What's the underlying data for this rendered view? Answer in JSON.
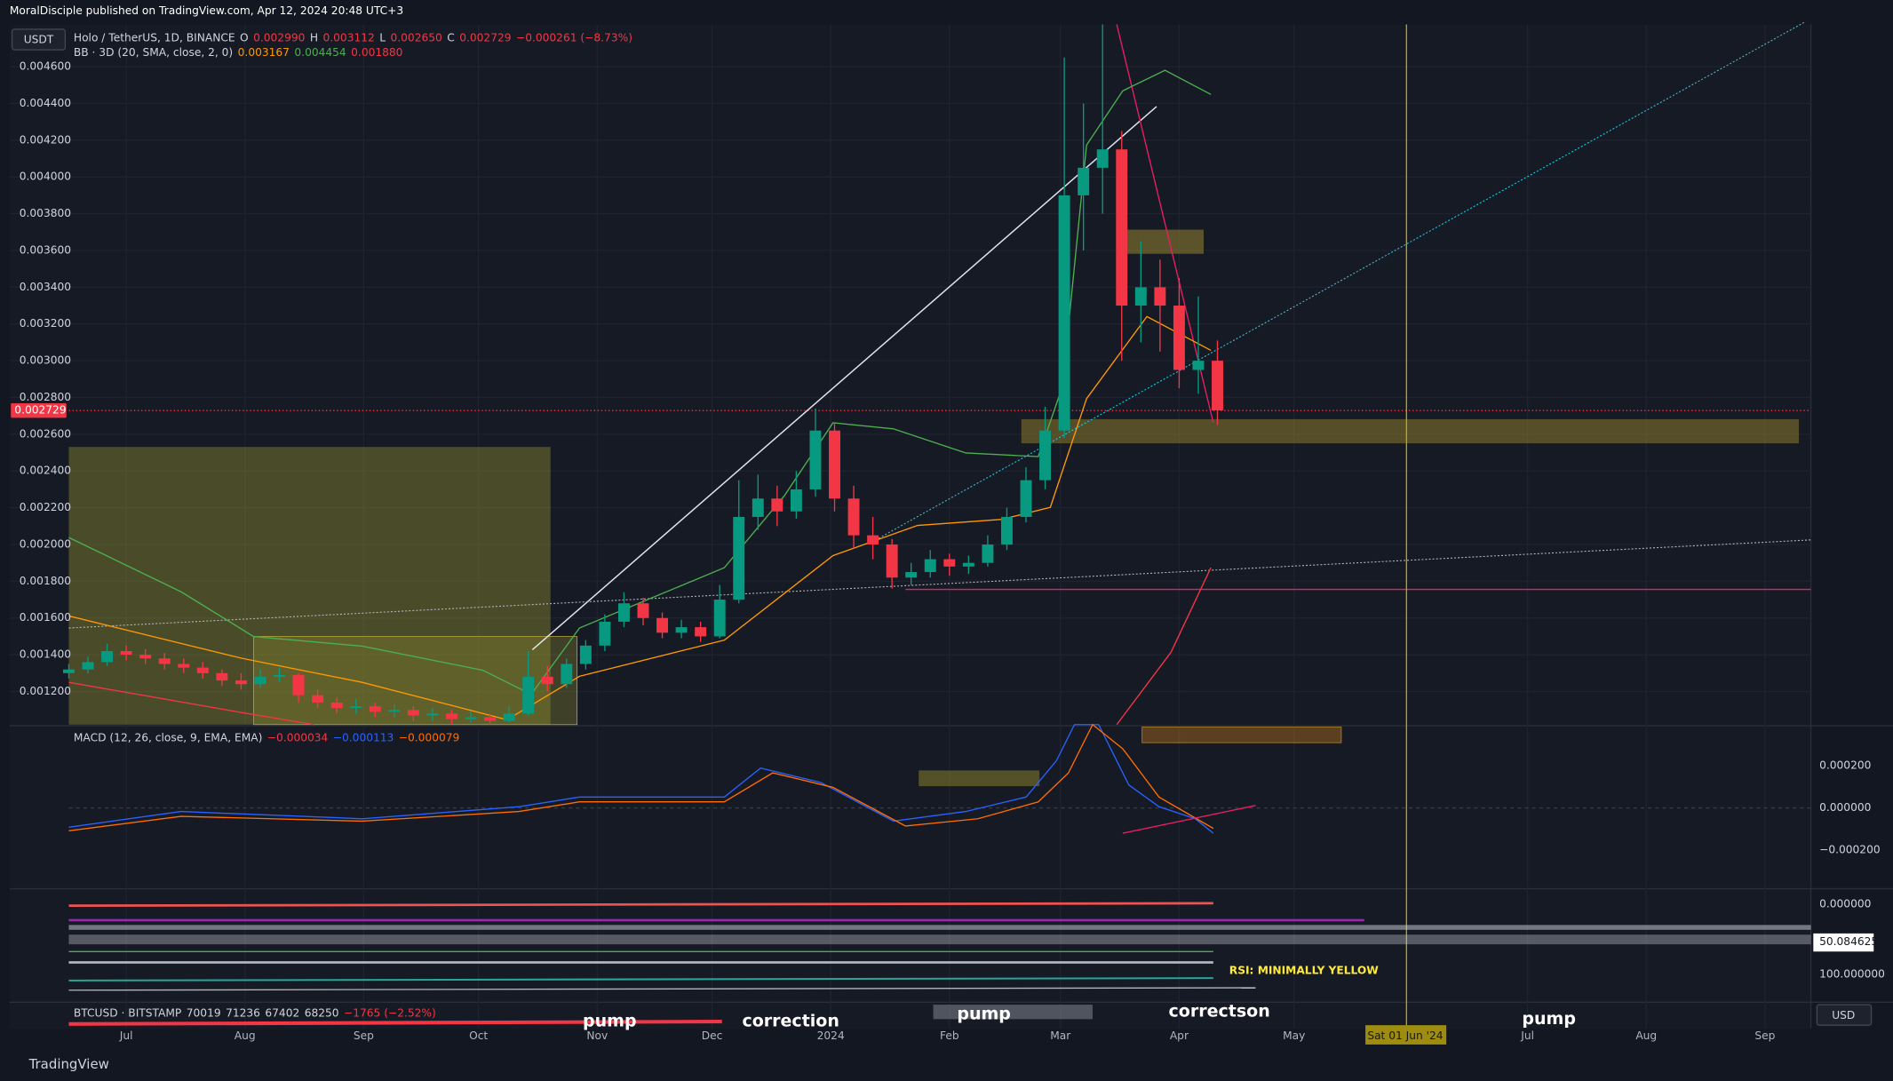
{
  "header": {
    "publisher": "MoralDisciple published on TradingView.com, Apr 12, 2024 20:48 UTC+3"
  },
  "currency_button": "USDT",
  "usd_label": "USD",
  "footer_logo": "TradingView",
  "chart_data": {
    "type": "candlestick",
    "legend_main": [
      {
        "text": "Holo / TetherUS, 1D, BINANCE",
        "color": "#d1d4dc"
      },
      {
        "text": "O",
        "color": "#d1d4dc"
      },
      {
        "text": "0.002990",
        "color": "#f23645"
      },
      {
        "text": "H",
        "color": "#d1d4dc"
      },
      {
        "text": "0.003112",
        "color": "#f23645"
      },
      {
        "text": "L",
        "color": "#d1d4dc"
      },
      {
        "text": "0.002650",
        "color": "#f23645"
      },
      {
        "text": "C",
        "color": "#d1d4dc"
      },
      {
        "text": "0.002729",
        "color": "#f23645"
      },
      {
        "text": "−0.000261 (−8.73%)",
        "color": "#f23645"
      }
    ],
    "legend_bb": [
      {
        "text": "BB · 3D (20, SMA, close, 2, 0)",
        "color": "#d1d4dc"
      },
      {
        "text": "0.003167",
        "color": "#ff9800"
      },
      {
        "text": "0.004454",
        "color": "#4caf50"
      },
      {
        "text": "0.001880",
        "color": "#f23645"
      }
    ],
    "legend_macd": [
      {
        "text": "MACD (12, 26, close, 9, EMA, EMA)",
        "color": "#d1d4dc"
      },
      {
        "text": "−0.000034",
        "color": "#f23645"
      },
      {
        "text": "−0.000113",
        "color": "#2962ff"
      },
      {
        "text": "−0.000079",
        "color": "#ff6d00"
      }
    ],
    "legend_btc": [
      {
        "text": "BTCUSD · BITSTAMP",
        "color": "#d1d4dc"
      },
      {
        "text": "70019",
        "color": "#d1d4dc"
      },
      {
        "text": "71236",
        "color": "#d1d4dc"
      },
      {
        "text": "67402",
        "color": "#d1d4dc"
      },
      {
        "text": "68250",
        "color": "#d1d4dc"
      },
      {
        "text": "−1765 (−2.52%)",
        "color": "#f23645"
      }
    ],
    "up_color": "#089981",
    "down_color": "#f23645",
    "grid": true,
    "x": [
      0,
      5,
      10,
      15,
      20,
      25,
      30,
      35,
      40,
      45,
      50,
      55,
      60,
      65,
      70,
      75,
      80,
      85,
      90,
      95,
      100,
      105,
      110,
      115,
      120,
      125,
      130,
      135,
      140,
      145,
      150,
      155,
      160,
      165,
      170,
      175,
      180,
      185,
      190,
      195,
      200,
      205,
      210,
      215,
      220,
      225,
      230,
      235,
      240,
      245,
      250,
      255,
      260,
      265,
      270,
      275,
      280,
      285,
      290,
      295,
      300
    ],
    "open": [
      0.0013,
      0.00132,
      0.00136,
      0.00142,
      0.0014,
      0.00138,
      0.00135,
      0.00133,
      0.0013,
      0.00126,
      0.00124,
      0.00128,
      0.00129,
      0.00118,
      0.00114,
      0.00111,
      0.00112,
      0.00109,
      0.0011,
      0.00107,
      0.00108,
      0.00105,
      0.00106,
      0.00104,
      0.00108,
      0.00128,
      0.00124,
      0.00135,
      0.00145,
      0.00158,
      0.00168,
      0.0016,
      0.00152,
      0.00155,
      0.0015,
      0.0017,
      0.00215,
      0.00225,
      0.00218,
      0.0023,
      0.00262,
      0.00225,
      0.00205,
      0.002,
      0.00182,
      0.00185,
      0.00192,
      0.00188,
      0.0019,
      0.002,
      0.00215,
      0.00235,
      0.00262,
      0.0039,
      0.00405,
      0.00415,
      0.0033,
      0.0034,
      0.0033,
      0.00295,
      0.003
    ],
    "high": [
      0.00135,
      0.00139,
      0.00146,
      0.00145,
      0.00143,
      0.00141,
      0.00138,
      0.00136,
      0.00132,
      0.0013,
      0.00132,
      0.00133,
      0.0013,
      0.00121,
      0.00117,
      0.00116,
      0.00114,
      0.00113,
      0.00112,
      0.00111,
      0.0011,
      0.00109,
      0.00108,
      0.00112,
      0.00142,
      0.00134,
      0.00138,
      0.00148,
      0.00162,
      0.00174,
      0.00171,
      0.00163,
      0.00159,
      0.00158,
      0.00178,
      0.00235,
      0.00238,
      0.00232,
      0.0024,
      0.00274,
      0.00266,
      0.00232,
      0.00215,
      0.00203,
      0.0019,
      0.00197,
      0.00195,
      0.00194,
      0.00205,
      0.0022,
      0.00242,
      0.00275,
      0.00465,
      0.0044,
      0.00483,
      0.00425,
      0.00365,
      0.00355,
      0.00345,
      0.00335,
      0.00311
    ],
    "low": [
      0.00127,
      0.0013,
      0.00134,
      0.00137,
      0.00135,
      0.00132,
      0.0013,
      0.00127,
      0.00123,
      0.00121,
      0.00122,
      0.00125,
      0.00114,
      0.00111,
      0.00108,
      0.00108,
      0.00106,
      0.00106,
      0.00104,
      0.00104,
      0.00102,
      0.00103,
      0.00102,
      0.00103,
      0.00107,
      0.0012,
      0.00122,
      0.00132,
      0.00142,
      0.00155,
      0.00156,
      0.00149,
      0.00149,
      0.00147,
      0.00149,
      0.00168,
      0.00208,
      0.0021,
      0.00214,
      0.00226,
      0.00218,
      0.00198,
      0.00192,
      0.00176,
      0.00178,
      0.00182,
      0.00183,
      0.00184,
      0.00188,
      0.00197,
      0.00212,
      0.0023,
      0.00258,
      0.0036,
      0.0038,
      0.003,
      0.0031,
      0.00305,
      0.00285,
      0.00282,
      0.00265
    ],
    "close": [
      0.00132,
      0.00136,
      0.00142,
      0.0014,
      0.00138,
      0.00135,
      0.00133,
      0.0013,
      0.00126,
      0.00124,
      0.00128,
      0.00129,
      0.00118,
      0.00114,
      0.00111,
      0.00112,
      0.00109,
      0.0011,
      0.00107,
      0.00108,
      0.00105,
      0.00106,
      0.00104,
      0.00108,
      0.00128,
      0.00124,
      0.00135,
      0.00145,
      0.00158,
      0.00168,
      0.0016,
      0.00152,
      0.00155,
      0.0015,
      0.0017,
      0.00215,
      0.00225,
      0.00218,
      0.0023,
      0.00262,
      0.00225,
      0.00205,
      0.002,
      0.00182,
      0.00185,
      0.00192,
      0.00188,
      0.0019,
      0.002,
      0.00215,
      0.00235,
      0.00262,
      0.0039,
      0.00405,
      0.00415,
      0.0033,
      0.0034,
      0.0033,
      0.00295,
      0.003,
      0.00273
    ],
    "xlim": [
      0,
      455
    ],
    "xticks": [
      {
        "value": 15,
        "label": "Jul"
      },
      {
        "value": 46,
        "label": "Aug"
      },
      {
        "value": 77,
        "label": "Sep"
      },
      {
        "value": 107,
        "label": "Oct"
      },
      {
        "value": 138,
        "label": "Nov"
      },
      {
        "value": 168,
        "label": "Dec"
      },
      {
        "value": 199,
        "label": "2024"
      },
      {
        "value": 230,
        "label": "Feb"
      },
      {
        "value": 259,
        "label": "Mar"
      },
      {
        "value": 290,
        "label": "Apr"
      },
      {
        "value": 320,
        "label": "May"
      },
      {
        "value": 381,
        "label": "Jul"
      },
      {
        "value": 412,
        "label": "Aug"
      },
      {
        "value": 443,
        "label": "Sep"
      }
    ],
    "ylim": [
      0.00102,
      0.00483
    ],
    "yticks": [
      {
        "value": 0.0012,
        "label": "0.001200"
      },
      {
        "value": 0.0014,
        "label": "0.001400"
      },
      {
        "value": 0.0016,
        "label": "0.001600"
      },
      {
        "value": 0.0018,
        "label": "0.001800"
      },
      {
        "value": 0.002,
        "label": "0.002000"
      },
      {
        "value": 0.0022,
        "label": "0.002200"
      },
      {
        "value": 0.0024,
        "label": "0.002400"
      },
      {
        "value": 0.0026,
        "label": "0.002600"
      },
      {
        "value": 0.0028,
        "label": "0.002800"
      },
      {
        "value": 0.003,
        "label": "0.003000"
      },
      {
        "value": 0.0032,
        "label": "0.003200"
      },
      {
        "value": 0.0034,
        "label": "0.003400"
      },
      {
        "value": 0.0036,
        "label": "0.003600"
      },
      {
        "value": 0.0038,
        "label": "0.003800"
      },
      {
        "value": 0.004,
        "label": "0.004000"
      },
      {
        "value": 0.0042,
        "label": "0.004200"
      },
      {
        "value": 0.0044,
        "label": "0.004400"
      },
      {
        "value": 0.0046,
        "label": "0.004600"
      }
    ],
    "last_price": {
      "value": 0.002729,
      "label": "0.002729"
    },
    "macd_ticks": [
      "0.000200",
      "0.000000",
      "−0.000200"
    ],
    "lower_pane_labels": [
      "0.000000",
      "50.084625",
      "100.000000"
    ],
    "crosshair_date": "Sat 01 Jun '24",
    "annotations": [
      "pump",
      "correction",
      "pump",
      "correctson",
      "pump",
      "RSI: MINIMALLY YELLOW"
    ]
  }
}
